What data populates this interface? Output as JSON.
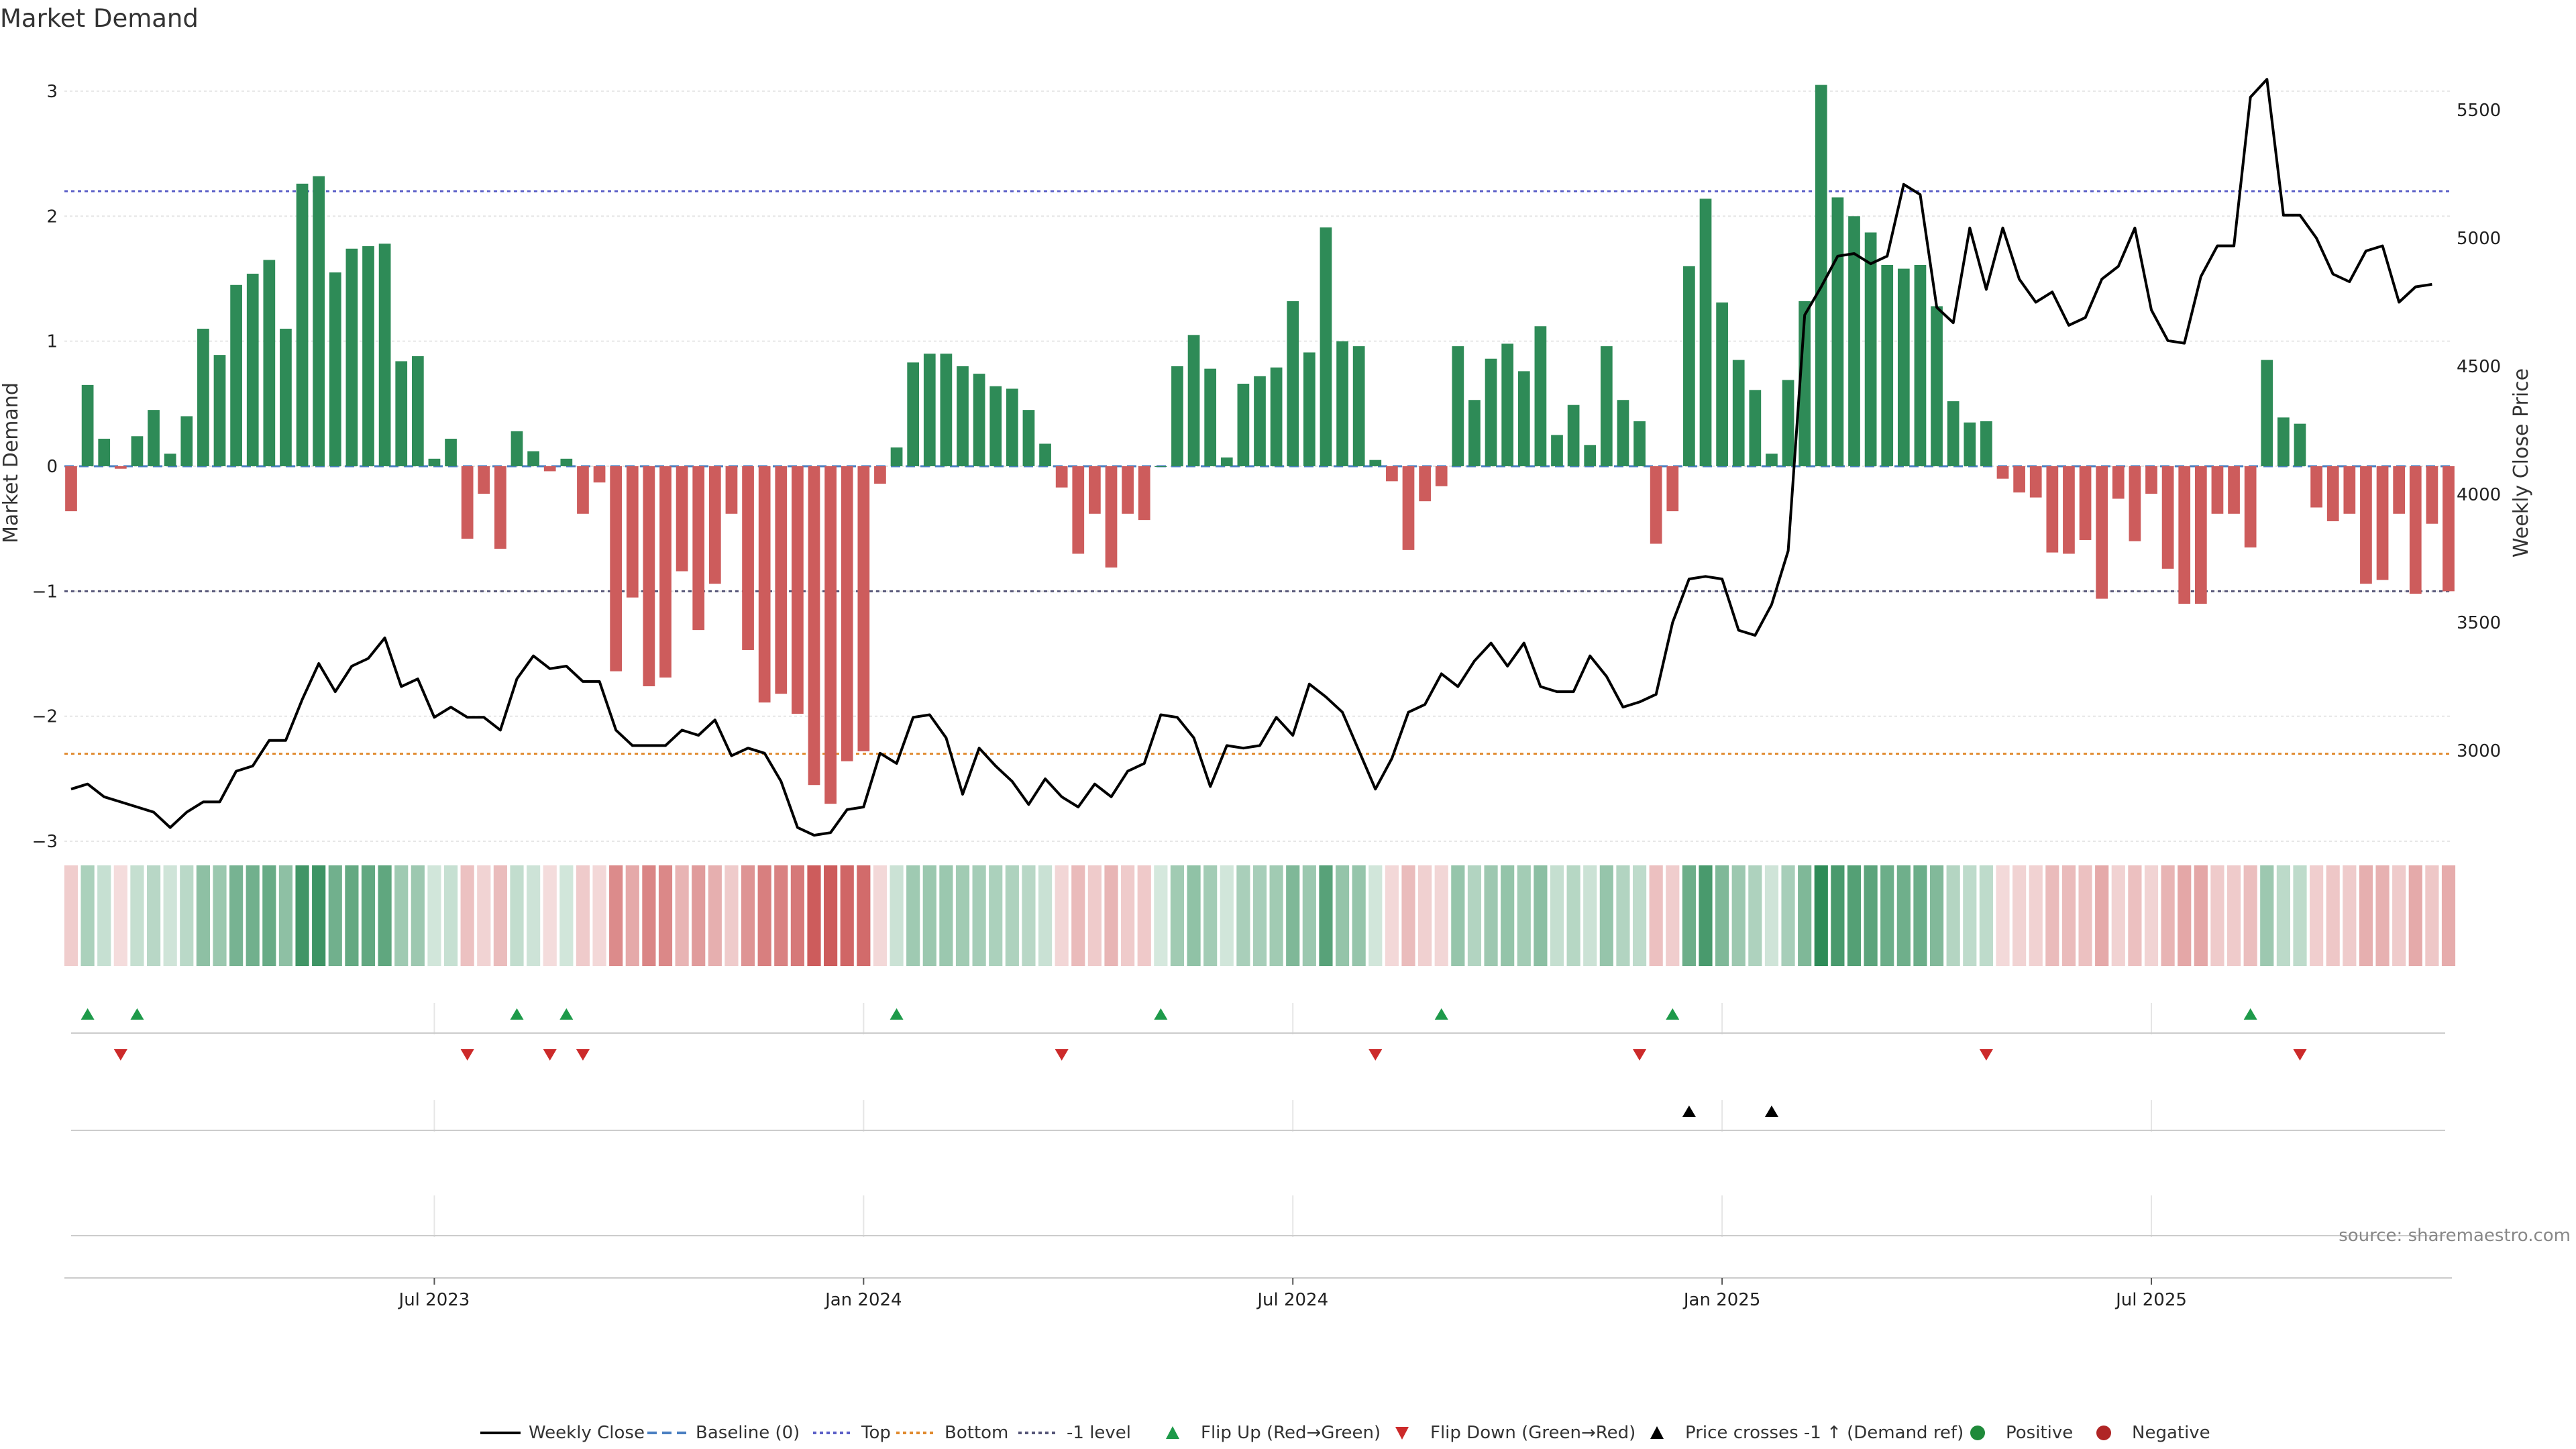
{
  "chart_data": {
    "type": "bar",
    "title": "Market Demand",
    "ylabel": "Market Demand",
    "y2label": "Weekly Close Price",
    "ylim": [
      -3.3,
      3.3
    ],
    "y2lim": [
      2500,
      5720
    ],
    "yticks": [
      "3",
      "2",
      "1",
      "0",
      "−1",
      "−2",
      "−3"
    ],
    "ytick_values": [
      3,
      2,
      1,
      0,
      -1,
      -2,
      -3
    ],
    "y2ticks": [
      "5500",
      "5000",
      "4500",
      "4000",
      "3500",
      "3000"
    ],
    "y2tick_values": [
      5500,
      5000,
      4500,
      4000,
      3500,
      3000
    ],
    "xticks": [
      "Jul 2023",
      "Jan 2024",
      "Jul 2024",
      "Jan 2025",
      "Jul 2025"
    ],
    "xtick_index": [
      22,
      48,
      74,
      100,
      126
    ],
    "reference_lines": {
      "top": 2.2,
      "bottom": -2.3,
      "minus_one": -1.0,
      "baseline": 0
    },
    "demand": [
      -0.36,
      0.65,
      0.22,
      -0.02,
      0.24,
      0.45,
      0.1,
      0.4,
      1.1,
      0.89,
      1.45,
      1.54,
      1.65,
      1.1,
      2.26,
      2.32,
      1.55,
      1.74,
      1.76,
      1.78,
      0.84,
      0.88,
      0.06,
      0.22,
      -0.58,
      -0.22,
      -0.66,
      0.28,
      0.12,
      -0.04,
      0.06,
      -0.38,
      -0.13,
      -1.64,
      -1.05,
      -1.76,
      -1.69,
      -0.84,
      -1.31,
      -0.94,
      -0.38,
      -1.47,
      -1.89,
      -1.82,
      -1.98,
      -2.55,
      -2.7,
      -2.36,
      -2.28,
      -0.14,
      0.15,
      0.83,
      0.9,
      0.9,
      0.8,
      0.74,
      0.64,
      0.62,
      0.45,
      0.18,
      -0.17,
      -0.7,
      -0.38,
      -0.81,
      -0.38,
      -0.43,
      0.0,
      0.8,
      1.05,
      0.78,
      0.07,
      0.66,
      0.72,
      0.79,
      1.32,
      0.91,
      1.91,
      1.0,
      0.96,
      0.05,
      -0.12,
      -0.67,
      -0.28,
      -0.16,
      0.96,
      0.53,
      0.86,
      0.98,
      0.76,
      1.12,
      0.25,
      0.49,
      0.17,
      0.96,
      0.53,
      0.36,
      -0.62,
      -0.36,
      1.6,
      2.14,
      1.31,
      0.85,
      0.61,
      0.1,
      0.69,
      1.32,
      3.05,
      2.15,
      2.0,
      1.87,
      1.61,
      1.58,
      1.61,
      1.28,
      0.52,
      0.35,
      0.36,
      -0.1,
      -0.21,
      -0.25,
      -0.69,
      -0.7,
      -0.59,
      -1.06,
      -0.26,
      -0.6,
      -0.22,
      -0.82,
      -1.1,
      -1.1,
      -0.38,
      -0.38,
      -0.65,
      0.85,
      0.39,
      0.34,
      -0.33,
      -0.44,
      -0.38,
      -0.94,
      -0.91,
      -0.38,
      -1.02,
      -0.46,
      -1.0
    ],
    "weekly_close": [
      2850,
      2870,
      2820,
      2800,
      2780,
      2760,
      2700,
      2760,
      2800,
      2800,
      2920,
      2940,
      3040,
      3040,
      3200,
      3340,
      3230,
      3330,
      3360,
      3440,
      3250,
      3280,
      3130,
      3170,
      3130,
      3130,
      3080,
      3280,
      3370,
      3320,
      3330,
      3270,
      3270,
      3080,
      3020,
      3020,
      3020,
      3080,
      3060,
      3120,
      2980,
      3010,
      2990,
      2880,
      2700,
      2670,
      2680,
      2770,
      2780,
      2990,
      2950,
      3130,
      3140,
      3050,
      2830,
      3010,
      2940,
      2880,
      2790,
      2890,
      2820,
      2780,
      2870,
      2820,
      2920,
      2950,
      3140,
      3130,
      3050,
      2860,
      3020,
      3010,
      3020,
      3130,
      3060,
      3260,
      3210,
      3150,
      3000,
      2850,
      2970,
      3150,
      3180,
      3300,
      3250,
      3350,
      3420,
      3330,
      3420,
      3250,
      3230,
      3230,
      3370,
      3290,
      3170,
      3190,
      3220,
      3500,
      3670,
      3680,
      3670,
      3470,
      3450,
      3570,
      3780,
      4700,
      4810,
      4930,
      4940,
      4900,
      4930,
      5210,
      5170,
      4730,
      4670,
      5040,
      4800,
      5040,
      4840,
      4750,
      4790,
      4660,
      4690,
      4840,
      4890,
      5040,
      4720,
      4600,
      4590,
      4850,
      4970,
      4970,
      5550,
      5620,
      5090,
      5090,
      5000,
      4860,
      4830,
      4950,
      4970,
      4750,
      4810,
      4820
    ]
  },
  "strips": [
    {
      "markers": [
        {
          "i": 1,
          "type": "up"
        },
        {
          "i": 4,
          "type": "up"
        },
        {
          "i": 27,
          "type": "up"
        },
        {
          "i": 30,
          "type": "up"
        },
        {
          "i": 50,
          "type": "up"
        },
        {
          "i": 66,
          "type": "up"
        },
        {
          "i": 83,
          "type": "up"
        },
        {
          "i": 97,
          "type": "up"
        },
        {
          "i": 132,
          "type": "up"
        },
        {
          "i": 3,
          "type": "down"
        },
        {
          "i": 24,
          "type": "down"
        },
        {
          "i": 29,
          "type": "down"
        },
        {
          "i": 31,
          "type": "down"
        },
        {
          "i": 60,
          "type": "down"
        },
        {
          "i": 79,
          "type": "down"
        },
        {
          "i": 95,
          "type": "down"
        },
        {
          "i": 116,
          "type": "down"
        },
        {
          "i": 135,
          "type": "down"
        }
      ]
    },
    {
      "markers": [
        {
          "i": 98,
          "type": "cross"
        },
        {
          "i": 103,
          "type": "cross"
        }
      ]
    },
    {
      "markers": []
    }
  ],
  "source": "source: sharemaestro.com",
  "legend": [
    {
      "label": "Weekly Close",
      "kind": "line",
      "color": "#000000"
    },
    {
      "label": "Baseline (0)",
      "kind": "dash",
      "color": "#4a7fc1"
    },
    {
      "label": "Top",
      "kind": "dot",
      "color": "#5b5fc7"
    },
    {
      "label": "Bottom",
      "kind": "dot",
      "color": "#e08a2e"
    },
    {
      "label": "-1 level",
      "kind": "dot",
      "color": "#555577"
    },
    {
      "label": "Flip Up (Red→Green)",
      "kind": "tri-up",
      "color": "#1e9a4a"
    },
    {
      "label": "Flip Down (Green→Red)",
      "kind": "tri-down",
      "color": "#cc2a2a"
    },
    {
      "label": "Price crosses -1 ↑ (Demand ref)",
      "kind": "tri-up",
      "color": "#000000"
    },
    {
      "label": "Positive",
      "kind": "dot-marker",
      "color": "#1f8a3a"
    },
    {
      "label": "Negative",
      "kind": "dot-marker",
      "color": "#b02525"
    }
  ],
  "colors": {
    "positive": "#2e8b57",
    "negative": "#cd5c5c",
    "grid": "#e6e6e6"
  }
}
